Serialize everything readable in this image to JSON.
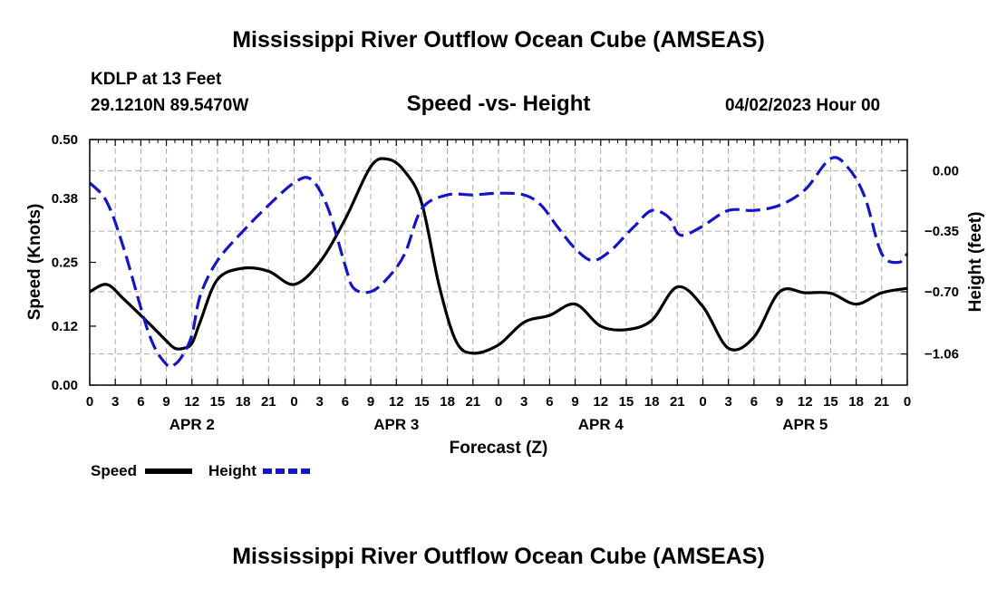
{
  "page": {
    "title_top": "Mississippi River Outflow Ocean Cube (AMSEAS)",
    "title_bottom": "Mississippi River Outflow Ocean Cube (AMSEAS)",
    "station": "KDLP at 13 Feet",
    "coords": "29.1210N  89.5470W",
    "subtitle": "Speed -vs- Height",
    "datetime": "04/02/2023 Hour 00"
  },
  "colors": {
    "speed": "#000000",
    "height": "#1515c8",
    "grid": "#aaaaaa"
  },
  "chart_data": {
    "type": "line",
    "title": "Speed -vs- Height",
    "xlabel": "Forecast (Z)",
    "ylabel": "Speed (Knots)",
    "y2label": "Height (feet)",
    "x_unit": "forecast hour",
    "xlim": [
      0,
      96
    ],
    "ylim": [
      0,
      0.5
    ],
    "y_ticks": [
      0.0,
      0.12,
      0.25,
      0.38,
      0.5
    ],
    "y_tick_labels": [
      "0.00",
      "0.12",
      "0.25",
      "0.38",
      "0.50"
    ],
    "y2lim": [
      -1.24,
      0.18
    ],
    "y2_ticks": [
      0.0,
      -0.35,
      -0.7,
      -1.06
    ],
    "y2_tick_labels": [
      "0.00",
      "−0.35",
      "−0.70",
      "−1.06"
    ],
    "x_ticks": [
      0,
      3,
      6,
      9,
      12,
      15,
      18,
      21,
      24,
      27,
      30,
      33,
      36,
      39,
      42,
      45,
      48,
      51,
      54,
      57,
      60,
      63,
      66,
      69,
      72,
      75,
      78,
      81,
      84,
      87,
      90,
      93,
      96
    ],
    "x_tick_labels": [
      "0",
      "3",
      "6",
      "9",
      "12",
      "15",
      "18",
      "21",
      "0",
      "3",
      "6",
      "9",
      "12",
      "15",
      "18",
      "21",
      "0",
      "3",
      "6",
      "9",
      "12",
      "15",
      "18",
      "21",
      "0",
      "3",
      "6",
      "9",
      "12",
      "15",
      "18",
      "21",
      "0"
    ],
    "day_labels": [
      {
        "label": "APR 2",
        "x": 12
      },
      {
        "label": "APR 3",
        "x": 36
      },
      {
        "label": "APR 4",
        "x": 60
      },
      {
        "label": "APR 5",
        "x": 84
      }
    ],
    "grid": true,
    "legend": {
      "position": "bottom-left",
      "entries": [
        "Speed",
        "Height"
      ]
    },
    "series": [
      {
        "name": "Speed",
        "axis": "left",
        "style": "solid",
        "x": [
          0,
          2,
          4,
          7,
          9,
          10,
          11,
          12,
          13,
          15,
          18,
          21,
          24,
          27,
          30,
          33,
          35,
          37,
          39,
          41,
          43,
          45,
          48,
          51,
          54,
          57,
          60,
          63,
          66,
          69,
          72,
          75,
          78,
          81,
          84,
          87,
          90,
          93,
          96
        ],
        "y": [
          0.19,
          0.205,
          0.175,
          0.125,
          0.09,
          0.075,
          0.075,
          0.085,
          0.13,
          0.215,
          0.238,
          0.232,
          0.205,
          0.25,
          0.338,
          0.445,
          0.46,
          0.435,
          0.37,
          0.205,
          0.09,
          0.065,
          0.082,
          0.128,
          0.142,
          0.165,
          0.12,
          0.113,
          0.132,
          0.2,
          0.16,
          0.075,
          0.098,
          0.19,
          0.188,
          0.187,
          0.165,
          0.188,
          0.197
        ]
      },
      {
        "name": "Height",
        "axis": "right",
        "style": "dashed",
        "x": [
          0,
          2,
          4,
          7,
          9,
          10,
          11,
          12,
          13,
          15,
          18,
          21,
          24,
          26,
          28,
          30,
          31,
          33,
          35,
          37,
          39,
          42,
          45,
          48,
          51,
          53,
          55,
          57,
          59,
          61,
          63,
          64,
          66,
          68,
          69,
          70,
          72,
          75,
          78,
          81,
          84,
          87,
          89,
          91,
          93,
          95,
          96
        ],
        "y": [
          -0.07,
          -0.18,
          -0.45,
          -0.95,
          -1.12,
          -1.12,
          -1.06,
          -0.95,
          -0.72,
          -0.52,
          -0.35,
          -0.2,
          -0.07,
          -0.05,
          -0.22,
          -0.55,
          -0.68,
          -0.7,
          -0.62,
          -0.48,
          -0.22,
          -0.14,
          -0.14,
          -0.13,
          -0.14,
          -0.2,
          -0.33,
          -0.45,
          -0.52,
          -0.47,
          -0.37,
          -0.32,
          -0.23,
          -0.27,
          -0.36,
          -0.37,
          -0.32,
          -0.23,
          -0.23,
          -0.2,
          -0.11,
          0.07,
          0.02,
          -0.15,
          -0.48,
          -0.53,
          -0.48
        ]
      }
    ]
  }
}
